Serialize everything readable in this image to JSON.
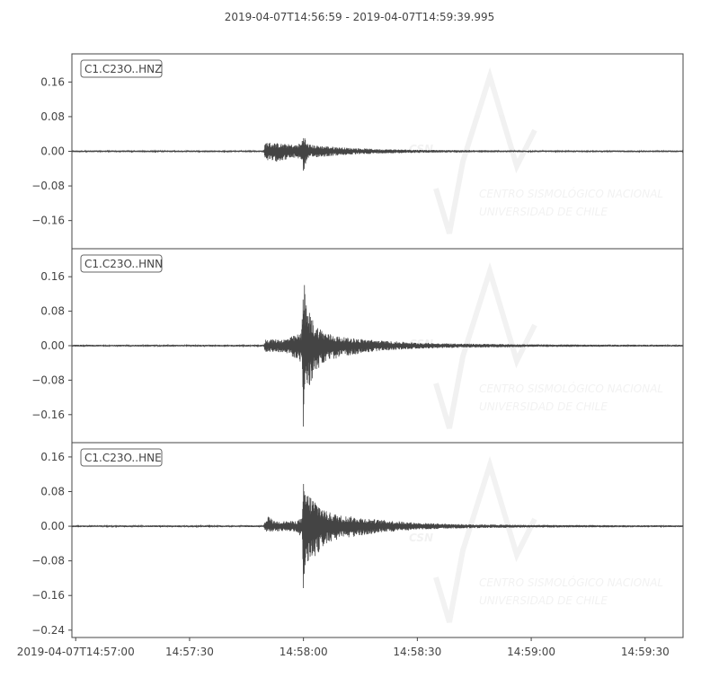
{
  "chart_data": {
    "type": "line",
    "title": "2019-04-07T14:56:59  -  2019-04-07T14:59:39.995",
    "x_range": [
      "14:56:59",
      "14:59:39.995"
    ],
    "x_tick_labels": [
      "2019-04-07T14:57:00",
      "14:57:30",
      "14:58:00",
      "14:58:30",
      "14:59:00",
      "14:59:30"
    ],
    "x_tick_seconds_from_14_57_00": [
      0,
      30,
      60,
      90,
      120,
      150
    ],
    "line_color": "#444444",
    "grid": false,
    "series": [
      {
        "name": "C1.C23O..HNZ",
        "ylim": [
          -0.225,
          0.225
        ],
        "y_ticks": [
          0.16,
          0.08,
          0.0,
          -0.08,
          -0.16
        ],
        "y_tick_labels": [
          "0.16",
          "0.08",
          "0.00",
          "−0.08",
          "−0.16"
        ],
        "envelope": {
          "t_seconds": [
            -1,
            49.5,
            50,
            52,
            58,
            59.5,
            60,
            60.8,
            62,
            66,
            72,
            80,
            95,
            120,
            161
          ],
          "max": [
            0.002,
            0.002,
            0.022,
            0.02,
            0.015,
            0.02,
            0.045,
            0.02,
            0.015,
            0.012,
            0.008,
            0.005,
            0.003,
            0.002,
            0.002
          ],
          "min": [
            -0.002,
            -0.002,
            -0.02,
            -0.025,
            -0.015,
            -0.02,
            -0.05,
            -0.022,
            -0.015,
            -0.012,
            -0.008,
            -0.005,
            -0.003,
            -0.002,
            -0.002
          ]
        }
      },
      {
        "name": "C1.C23O..HNN",
        "ylim": [
          -0.225,
          0.225
        ],
        "y_ticks": [
          0.16,
          0.08,
          0.0,
          -0.08,
          -0.16
        ],
        "y_tick_labels": [
          "0.16",
          "0.08",
          "0.00",
          "−0.08",
          "−0.16"
        ],
        "envelope": {
          "t_seconds": [
            -1,
            49.5,
            50,
            55,
            59.5,
            60,
            60.5,
            61.5,
            63,
            66,
            70,
            80,
            90,
            100,
            120,
            161
          ],
          "max": [
            0.002,
            0.002,
            0.015,
            0.015,
            0.03,
            0.2,
            0.1,
            0.08,
            0.05,
            0.03,
            0.02,
            0.012,
            0.007,
            0.005,
            0.003,
            0.002
          ],
          "min": [
            -0.002,
            -0.002,
            -0.015,
            -0.015,
            -0.04,
            -0.21,
            -0.12,
            -0.1,
            -0.06,
            -0.04,
            -0.025,
            -0.012,
            -0.007,
            -0.005,
            -0.003,
            -0.002
          ]
        }
      },
      {
        "name": "C1.C23O..HNE",
        "ylim": [
          -0.257,
          0.193
        ],
        "y_ticks": [
          0.16,
          0.08,
          0.0,
          -0.08,
          -0.16,
          -0.24
        ],
        "y_tick_labels": [
          "0.16",
          "0.08",
          "0.00",
          "−0.08",
          "−0.16",
          "−0.24"
        ],
        "envelope": {
          "t_seconds": [
            -1,
            49.5,
            50,
            51,
            52,
            58,
            59.7,
            60,
            60.8,
            62,
            66,
            70,
            80,
            90,
            100,
            120,
            161
          ],
          "max": [
            0.002,
            0.002,
            0.012,
            0.025,
            0.012,
            0.012,
            0.02,
            0.1,
            0.08,
            0.07,
            0.035,
            0.025,
            0.015,
            0.008,
            0.005,
            0.003,
            0.002
          ],
          "min": [
            -0.002,
            -0.002,
            -0.012,
            -0.015,
            -0.012,
            -0.012,
            -0.03,
            -0.17,
            -0.09,
            -0.08,
            -0.04,
            -0.03,
            -0.015,
            -0.008,
            -0.005,
            -0.003,
            -0.002
          ]
        }
      }
    ]
  },
  "watermark": {
    "logo": "CSN",
    "line1": "CENTRO SISMOLÓGICO NACIONAL",
    "line2": "UNIVERSIDAD DE CHILE"
  }
}
